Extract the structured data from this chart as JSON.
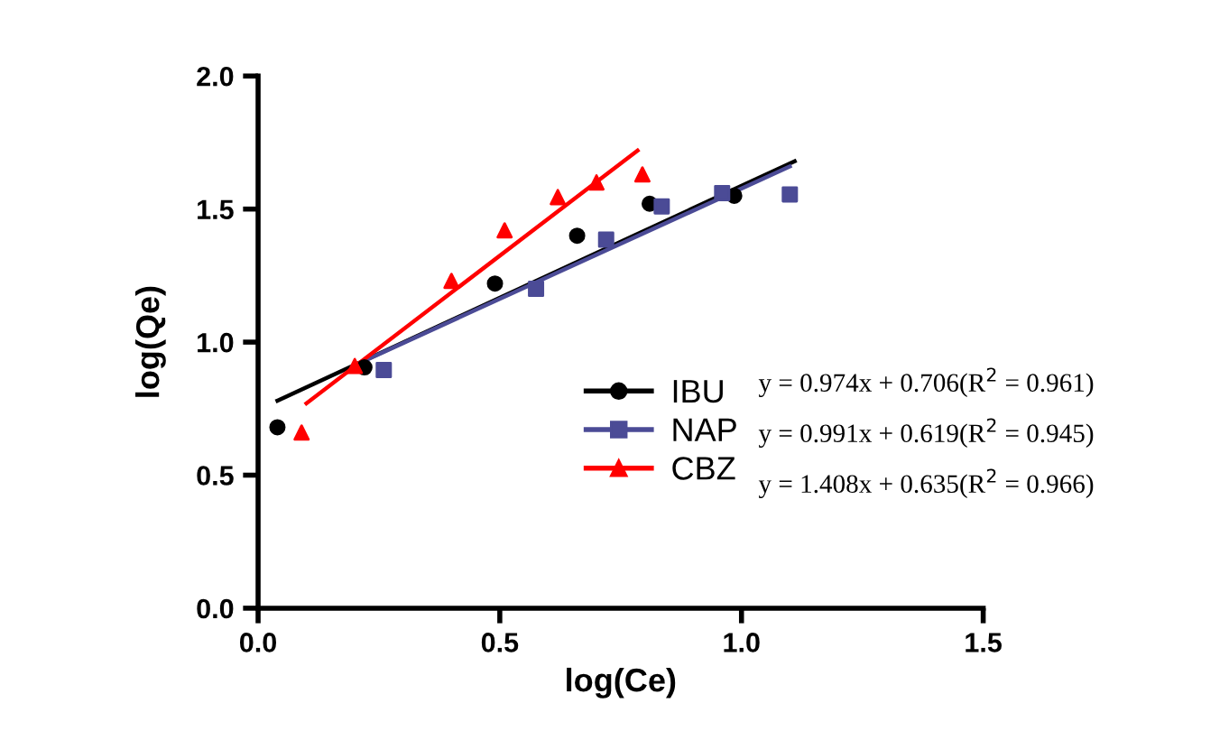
{
  "chart_data": {
    "type": "scatter",
    "xlabel": "log(Ce)",
    "ylabel": "log(Qe)",
    "xlim": [
      0,
      1.5
    ],
    "ylim": [
      0,
      2
    ],
    "xticks": [
      {
        "value": 0,
        "label": "0.0"
      },
      {
        "value": 0.5,
        "label": "0.5"
      },
      {
        "value": 1,
        "label": "1.0"
      },
      {
        "value": 1.5,
        "label": "1.5"
      }
    ],
    "yticks": [
      {
        "value": 0,
        "label": "0.0"
      },
      {
        "value": 0.5,
        "label": "0.5"
      },
      {
        "value": 1,
        "label": "1.0"
      },
      {
        "value": 1.5,
        "label": "1.5"
      },
      {
        "value": 2,
        "label": "2.0"
      }
    ],
    "grid": false,
    "legend": "center",
    "series": [
      {
        "name": "IBU",
        "color": "#000000",
        "marker": "circle",
        "x": [
          0.04,
          0.22,
          0.49,
          0.66,
          0.81,
          0.985
        ],
        "values": [
          0.68,
          0.905,
          1.22,
          1.4,
          1.52,
          1.55
        ]
      },
      {
        "name": "NAP",
        "color": "#4b4b96",
        "marker": "square",
        "x": [
          0.26,
          0.575,
          0.72,
          0.835,
          0.96,
          1.1
        ],
        "values": [
          0.895,
          1.2,
          1.385,
          1.51,
          1.56,
          1.555
        ]
      },
      {
        "name": "CBZ",
        "color": "#ff0000",
        "marker": "triangle",
        "x": [
          0.09,
          0.2,
          0.4,
          0.51,
          0.62,
          0.7,
          0.795
        ],
        "values": [
          0.66,
          0.91,
          1.23,
          1.42,
          1.545,
          1.6,
          1.63
        ]
      },
      {
        "type": "line",
        "color": "#000000",
        "x": [
          0.04,
          1.11
        ],
        "values": [
          0.78,
          1.68
        ]
      },
      {
        "type": "line",
        "color": "#4b4b96",
        "x": [
          0.22,
          1.1
        ],
        "values": [
          0.93,
          1.66
        ]
      },
      {
        "type": "line",
        "color": "#ff0000",
        "x": [
          0.1,
          0.785
        ],
        "values": [
          0.77,
          1.72
        ]
      }
    ],
    "annotations": [
      "y = 0.974x + 0.706(R$^{2}$ = 0.961)",
      "y = 0.991x + 0.619(R$^{2}$ = 0.945)",
      "y = 1.408x + 0.635(R$^{2}$ = 0.966)"
    ]
  }
}
